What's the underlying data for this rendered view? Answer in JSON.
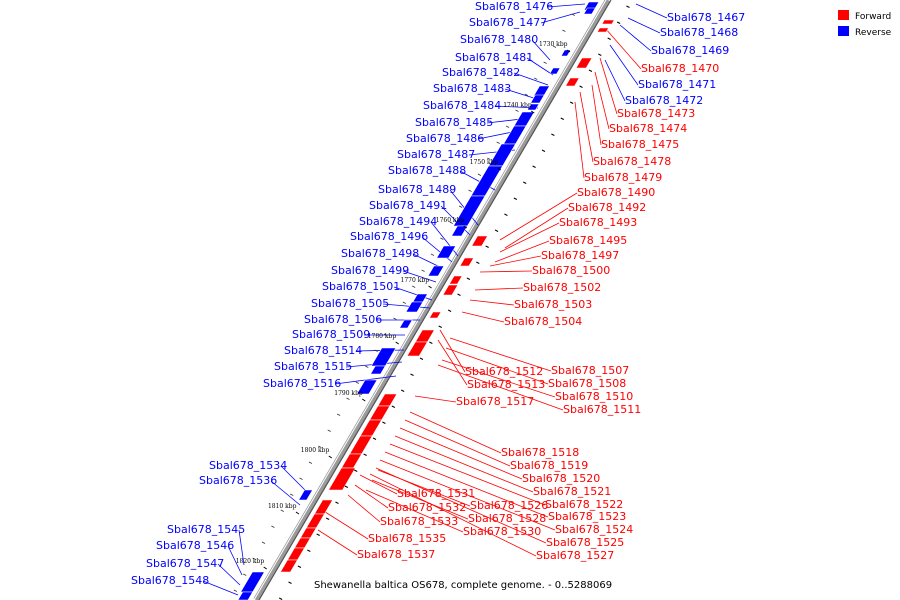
{
  "caption": "Shewanella baltica OS678, complete genome. - 0..5288069",
  "legend": [
    {
      "label": "Forward",
      "color": "#ff0000"
    },
    {
      "label": "Reverse",
      "color": "#0000ff"
    }
  ],
  "colors": {
    "forward": "#ff0000",
    "reverse": "#0000ff",
    "backbone": "#888888"
  },
  "kbp_ticks": [
    "1730 kbp",
    "1740 kbp",
    "1750 kbp",
    "1760 kbp",
    "1770 kbp",
    "1780 kbp",
    "1790 kbp",
    "1800 kbp",
    "1810 kbp",
    "1820 kbp"
  ],
  "reverse_labels": [
    "Sbal678_1476",
    "Sbal678_1477",
    "Sbal678_1480",
    "Sbal678_1481",
    "Sbal678_1482",
    "Sbal678_1483",
    "Sbal678_1484",
    "Sbal678_1485",
    "Sbal678_1486",
    "Sbal678_1487",
    "Sbal678_1488",
    "Sbal678_1489",
    "Sbal678_1491",
    "Sbal678_1494",
    "Sbal678_1496",
    "Sbal678_1498",
    "Sbal678_1499",
    "Sbal678_1501",
    "Sbal678_1505",
    "Sbal678_1506",
    "Sbal678_1509",
    "Sbal678_1514",
    "Sbal678_1515",
    "Sbal678_1516",
    "Sbal678_1534",
    "Sbal678_1536",
    "Sbal678_1545",
    "Sbal678_1546",
    "Sbal678_1547",
    "Sbal678_1548",
    "Sbal678_1467",
    "Sbal678_1468",
    "Sbal678_1469",
    "Sbal678_1471",
    "Sbal678_1472"
  ],
  "forward_labels": [
    "Sbal678_1470",
    "Sbal678_1473",
    "Sbal678_1474",
    "Sbal678_1475",
    "Sbal678_1478",
    "Sbal678_1479",
    "Sbal678_1490",
    "Sbal678_1492",
    "Sbal678_1493",
    "Sbal678_1495",
    "Sbal678_1497",
    "Sbal678_1500",
    "Sbal678_1502",
    "Sbal678_1503",
    "Sbal678_1504",
    "Sbal678_1507",
    "Sbal678_1508",
    "Sbal678_1510",
    "Sbal678_1511",
    "Sbal678_1512",
    "Sbal678_1513",
    "Sbal678_1517",
    "Sbal678_1518",
    "Sbal678_1519",
    "Sbal678_1520",
    "Sbal678_1521",
    "Sbal678_1522",
    "Sbal678_1523",
    "Sbal678_1524",
    "Sbal678_1525",
    "Sbal678_1527",
    "Sbal678_1526",
    "Sbal678_1528",
    "Sbal678_1530",
    "Sbal678_1531",
    "Sbal678_1532",
    "Sbal678_1533",
    "Sbal678_1535",
    "Sbal678_1537"
  ]
}
